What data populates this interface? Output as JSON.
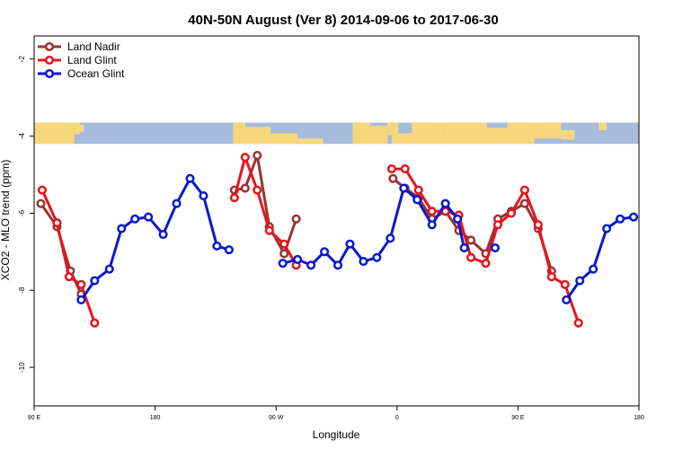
{
  "chart_data": {
    "type": "line",
    "title": "40N-50N August (Ver 8)   2014-09-06 to 2017-06-30",
    "xlabel": "Longitude",
    "ylabel": "XCO2 - MLO trend (ppm)",
    "xlim": [
      0,
      450
    ],
    "ylim": [
      -11,
      -1.4
    ],
    "x_ticks": [
      {
        "x": 0,
        "label": "90 E"
      },
      {
        "x": 90,
        "label": "180"
      },
      {
        "x": 180,
        "label": "90 W"
      },
      {
        "x": 270,
        "label": "0"
      },
      {
        "x": 360,
        "label": "90 E"
      },
      {
        "x": 450,
        "label": "180"
      }
    ],
    "y_ticks": [
      {
        "y": -2,
        "label": "-2"
      },
      {
        "y": -4,
        "label": "-4"
      },
      {
        "y": -6,
        "label": "-6"
      },
      {
        "y": -8,
        "label": "-8"
      },
      {
        "y": -10,
        "label": "-10"
      }
    ],
    "legend_position": "top-left",
    "grid": false,
    "map_strip": {
      "y_top": -3.65,
      "y_bottom": -4.2,
      "land_color": "#f7d77c",
      "ocean_color": "#a7bcdc"
    },
    "series": [
      {
        "name": "Land Nadir",
        "color": "#993333",
        "segments": [
          [
            [
              5,
              -5.75
            ],
            [
              17,
              -6.35
            ],
            [
              27,
              -7.5
            ],
            [
              35,
              -8.1
            ]
          ],
          [
            [
              149,
              -5.4
            ],
            [
              157,
              -5.35
            ],
            [
              166,
              -4.5
            ],
            [
              175,
              -6.35
            ],
            [
              186,
              -7.05
            ],
            [
              195,
              -6.15
            ]
          ],
          [
            [
              267,
              -5.1
            ],
            [
              276,
              -5.35
            ],
            [
              286,
              -5.6
            ],
            [
              296,
              -6.15
            ],
            [
              306,
              -5.95
            ],
            [
              316,
              -6.45
            ],
            [
              325,
              -6.7
            ],
            [
              336,
              -7.05
            ],
            [
              345,
              -6.15
            ],
            [
              355,
              -5.95
            ],
            [
              365,
              -5.75
            ],
            [
              375,
              -6.4
            ],
            [
              385,
              -7.5
            ]
          ]
        ]
      },
      {
        "name": "Land Glint",
        "color": "#e8141b",
        "segments": [
          [
            [
              6,
              -5.4
            ],
            [
              17,
              -6.25
            ],
            [
              26,
              -7.65
            ],
            [
              35,
              -7.85
            ],
            [
              45,
              -8.85
            ]
          ],
          [
            [
              149,
              -5.6
            ],
            [
              157,
              -4.55
            ],
            [
              166,
              -5.4
            ],
            [
              175,
              -6.45
            ],
            [
              186,
              -6.8
            ],
            [
              195,
              -7.35
            ]
          ],
          [
            [
              266,
              -4.85
            ],
            [
              276,
              -4.85
            ],
            [
              286,
              -5.4
            ],
            [
              296,
              -5.95
            ],
            [
              306,
              -5.95
            ],
            [
              316,
              -6.05
            ],
            [
              325,
              -7.15
            ],
            [
              336,
              -7.3
            ],
            [
              345,
              -6.3
            ],
            [
              355,
              -6.0
            ],
            [
              365,
              -5.4
            ],
            [
              375,
              -6.3
            ],
            [
              385,
              -7.65
            ],
            [
              395,
              -7.85
            ],
            [
              405,
              -8.85
            ]
          ]
        ]
      },
      {
        "name": "Ocean Glint",
        "color": "#0a18d1",
        "segments": [
          [
            [
              35,
              -8.25
            ],
            [
              45,
              -7.75
            ],
            [
              56,
              -7.45
            ],
            [
              65,
              -6.4
            ],
            [
              75,
              -6.15
            ],
            [
              85,
              -6.1
            ],
            [
              96,
              -6.55
            ],
            [
              106,
              -5.75
            ],
            [
              116,
              -5.1
            ],
            [
              126,
              -5.55
            ],
            [
              136,
              -6.85
            ],
            [
              145,
              -6.95
            ]
          ],
          [
            [
              185,
              -7.3
            ],
            [
              196,
              -7.2
            ],
            [
              206,
              -7.35
            ],
            [
              216,
              -7.0
            ],
            [
              226,
              -7.35
            ],
            [
              235,
              -6.8
            ],
            [
              245,
              -7.25
            ],
            [
              255,
              -7.15
            ],
            [
              265,
              -6.65
            ],
            [
              275,
              -5.35
            ],
            [
              285,
              -5.65
            ],
            [
              296,
              -6.3
            ],
            [
              306,
              -5.75
            ],
            [
              315,
              -6.15
            ],
            [
              320,
              -6.9
            ]
          ],
          [
            [
              343,
              -6.9
            ]
          ],
          [
            [
              396,
              -8.25
            ],
            [
              406,
              -7.75
            ],
            [
              416,
              -7.45
            ],
            [
              426,
              -6.4
            ],
            [
              436,
              -6.15
            ],
            [
              446,
              -6.1
            ]
          ]
        ]
      }
    ]
  }
}
